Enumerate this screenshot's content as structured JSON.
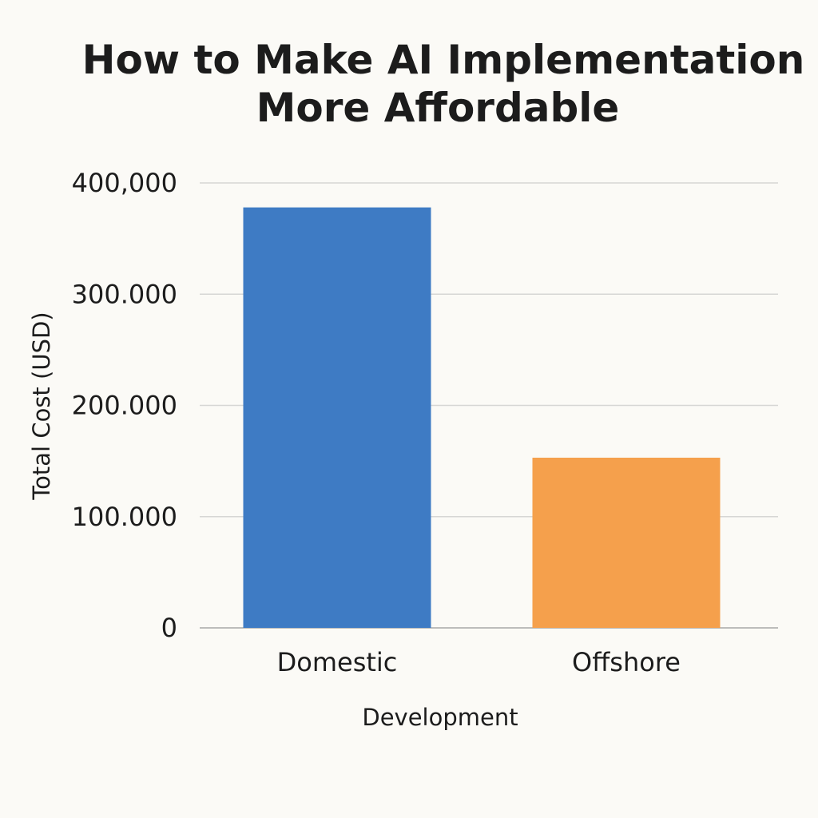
{
  "chart_data": {
    "type": "bar",
    "title_lines": [
      "How to Make AI Implementation",
      "More Affordable"
    ],
    "xlabel": "Development",
    "ylabel": "Total Cost (USD)",
    "categories": [
      "Domestic",
      "Offshore"
    ],
    "values": [
      378000,
      153000
    ],
    "ylim": [
      0,
      400000
    ],
    "yticks": [
      0,
      100000,
      200000,
      300000,
      400000
    ],
    "ytick_labels": [
      "0",
      "100.000",
      "200.000",
      "300.000",
      "400,000"
    ],
    "grid": true,
    "bar_colors": [
      "#3e7bc4",
      "#f5a04c"
    ],
    "legend": "none"
  }
}
